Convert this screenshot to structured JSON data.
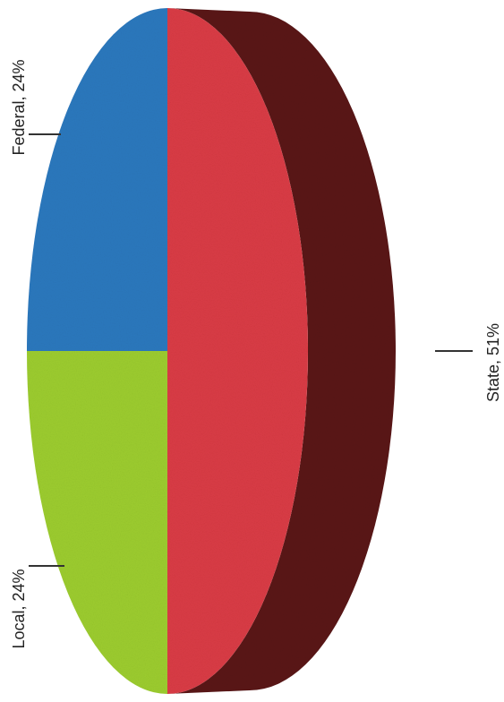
{
  "chart_data": {
    "type": "pie",
    "style": "3d",
    "orientation": "rotated",
    "slices": [
      {
        "name": "State",
        "value": 51,
        "label": "State, 51%",
        "color": "#d93b45",
        "side_color": "#5a1418"
      },
      {
        "name": "Federal",
        "value": 24,
        "label": "Federal, 24%",
        "color": "#2b78bd"
      },
      {
        "name": "Local",
        "value": 24,
        "label": "Local, 24%",
        "color": "#9ccc2e"
      }
    ],
    "legend": "none"
  }
}
